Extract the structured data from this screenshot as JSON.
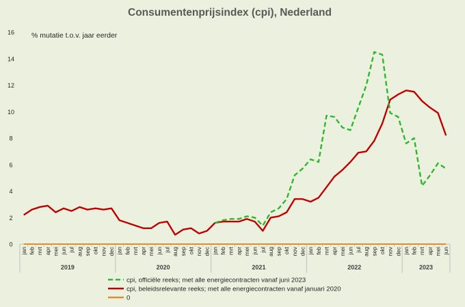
{
  "chart_data": {
    "type": "line",
    "title": "Consumentenprijsindex (cpi), Nederland",
    "unit_label": "% mutatie t.o.v. jaar eerder",
    "ylim": [
      0,
      16
    ],
    "yticks": [
      0,
      2,
      4,
      6,
      8,
      10,
      12,
      14,
      16
    ],
    "months": [
      "jan",
      "feb",
      "mrt",
      "apr",
      "mei",
      "jun",
      "jul",
      "aug",
      "sep",
      "okt",
      "nov",
      "dec",
      "jan",
      "feb",
      "mrt",
      "apr",
      "mei",
      "jun",
      "jul",
      "aug",
      "sep",
      "okt",
      "nov",
      "dec",
      "jan",
      "feb",
      "mrt",
      "apr",
      "mei",
      "jun",
      "jul",
      "aug",
      "sep",
      "okt",
      "nov",
      "dec",
      "jan",
      "feb",
      "mrt",
      "apr",
      "mei",
      "jun",
      "jul",
      "aug",
      "sep",
      "okt",
      "nov",
      "dec",
      "jan",
      "feb",
      "mrt",
      "apr",
      "mei",
      "jun"
    ],
    "years": [
      {
        "label": "2019",
        "start": 0,
        "count": 12
      },
      {
        "label": "2020",
        "start": 12,
        "count": 12
      },
      {
        "label": "2021",
        "start": 24,
        "count": 12
      },
      {
        "label": "2022",
        "start": 36,
        "count": 12
      },
      {
        "label": "2023",
        "start": 48,
        "count": 6
      }
    ],
    "series": [
      {
        "name": "cpi, officiële reeks; met alle energiecontracten vanaf juni 2023",
        "color": "#2eb82e",
        "style": "dashed",
        "start_index": 24,
        "values": [
          1.6,
          1.8,
          1.9,
          1.9,
          2.1,
          2.0,
          1.4,
          2.4,
          2.7,
          3.4,
          5.2,
          5.7,
          6.4,
          6.2,
          9.7,
          9.6,
          8.8,
          8.6,
          10.3,
          12.0,
          14.5,
          14.3,
          9.9,
          9.6,
          7.6,
          8.0,
          4.4,
          5.2,
          6.1,
          5.7
        ]
      },
      {
        "name": "cpi, beleidsrelevante reeks; met alle energiecontracten vanaf januari 2020",
        "color": "#c00000",
        "style": "solid",
        "start_index": 0,
        "values": [
          2.2,
          2.6,
          2.8,
          2.9,
          2.4,
          2.7,
          2.5,
          2.8,
          2.6,
          2.7,
          2.6,
          2.7,
          1.8,
          1.6,
          1.4,
          1.2,
          1.2,
          1.6,
          1.7,
          0.7,
          1.1,
          1.2,
          0.8,
          1.0,
          1.6,
          1.7,
          1.7,
          1.7,
          1.9,
          1.7,
          1.0,
          2.0,
          2.1,
          2.4,
          3.4,
          3.4,
          3.2,
          3.5,
          4.3,
          5.1,
          5.6,
          6.2,
          6.9,
          7.0,
          7.8,
          9.1,
          10.9,
          11.3,
          11.6,
          11.5,
          10.8,
          10.3,
          9.9,
          8.2
        ]
      },
      {
        "name": "0",
        "color": "#e38b2c",
        "style": "solid",
        "start_index": 0,
        "values": [
          0,
          0,
          0,
          0,
          0,
          0,
          0,
          0,
          0,
          0,
          0,
          0,
          0,
          0,
          0,
          0,
          0,
          0,
          0,
          0,
          0,
          0,
          0,
          0,
          0,
          0,
          0,
          0,
          0,
          0,
          0,
          0,
          0,
          0,
          0,
          0,
          0,
          0,
          0,
          0,
          0,
          0,
          0,
          0,
          0,
          0,
          0,
          0,
          0,
          0,
          0,
          0,
          0,
          0
        ]
      }
    ]
  }
}
